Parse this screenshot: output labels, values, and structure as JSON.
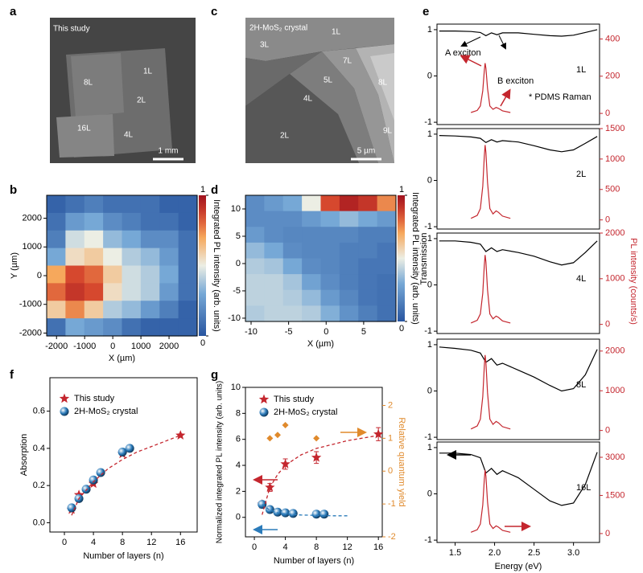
{
  "images": [
    {
      "panel": "a",
      "labels": [
        "This study",
        "8L",
        "1L",
        "2L",
        "16L",
        "4L"
      ],
      "scale_bar": "1 mm"
    },
    {
      "panel": "c",
      "title": "2H-MoS₂ crystal",
      "labels": [
        "3L",
        "1L",
        "7L",
        "5L",
        "8L",
        "4L",
        "2L",
        "9L"
      ],
      "scale_bar": "5 µm"
    }
  ],
  "chart_data": [
    {
      "panel": "b",
      "type": "heatmap",
      "xlabel": "X (µm)",
      "ylabel": "Y (µm)",
      "colorbar_label": "Integrated PL intensity (arb. units)",
      "clim": [
        0,
        1
      ],
      "colorbar_ticks": [
        0,
        1
      ],
      "xlim": [
        -2350,
        3000
      ],
      "xticks": [
        -2000,
        -1000,
        0,
        1000,
        2000
      ],
      "ylim": [
        -2100,
        2800
      ],
      "yticks": [
        -2000,
        -1000,
        0,
        1000,
        2000
      ],
      "z": [
        [
          0.05,
          0.1,
          0.15,
          0.1,
          0.1,
          0.1,
          0.05,
          0.05
        ],
        [
          0.1,
          0.25,
          0.3,
          0.2,
          0.15,
          0.1,
          0.1,
          0.05
        ],
        [
          0.15,
          0.45,
          0.5,
          0.35,
          0.3,
          0.2,
          0.2,
          0.1
        ],
        [
          0.3,
          0.55,
          0.6,
          0.5,
          0.4,
          0.35,
          0.25,
          0.1
        ],
        [
          0.7,
          0.85,
          0.8,
          0.6,
          0.45,
          0.4,
          0.3,
          0.1
        ],
        [
          0.8,
          0.9,
          0.85,
          0.55,
          0.45,
          0.4,
          0.25,
          0.1
        ],
        [
          0.6,
          0.75,
          0.6,
          0.4,
          0.35,
          0.25,
          0.15,
          0.05
        ],
        [
          0.1,
          0.3,
          0.25,
          0.2,
          0.1,
          0.05,
          0.05,
          0.05
        ]
      ]
    },
    {
      "panel": "d",
      "type": "heatmap",
      "xlabel": "X (µm)",
      "colorbar_label": "Integrated PL intensity (arb. units)",
      "clim": [
        0,
        1
      ],
      "colorbar_ticks": [
        0,
        1
      ],
      "xlim": [
        -10.75,
        9.3
      ],
      "xticks": [
        -10,
        -5,
        0,
        5
      ],
      "ylim": [
        -10.6,
        12.5
      ],
      "yticks": [
        -10,
        -5,
        0,
        5,
        10
      ],
      "z": [
        [
          0.2,
          0.25,
          0.3,
          0.5,
          0.85,
          0.95,
          0.9,
          0.75
        ],
        [
          0.2,
          0.2,
          0.2,
          0.25,
          0.3,
          0.35,
          0.3,
          0.25
        ],
        [
          0.25,
          0.2,
          0.18,
          0.18,
          0.18,
          0.18,
          0.15,
          0.15
        ],
        [
          0.35,
          0.3,
          0.2,
          0.18,
          0.18,
          0.15,
          0.15,
          0.12
        ],
        [
          0.4,
          0.38,
          0.3,
          0.2,
          0.18,
          0.15,
          0.12,
          0.12
        ],
        [
          0.42,
          0.42,
          0.38,
          0.28,
          0.2,
          0.15,
          0.12,
          0.1
        ],
        [
          0.42,
          0.42,
          0.4,
          0.35,
          0.25,
          0.18,
          0.12,
          0.1
        ],
        [
          0.4,
          0.42,
          0.42,
          0.4,
          0.32,
          0.22,
          0.15,
          0.1
        ]
      ]
    },
    {
      "panel": "f",
      "type": "scatter",
      "xlabel": "Number of layers (n)",
      "ylabel": "Absorption",
      "xlim": [
        -2,
        18.3
      ],
      "xticks": [
        0,
        4,
        8,
        12,
        16
      ],
      "ylim": [
        -0.05,
        0.78
      ],
      "yticks": [
        {
          "value": 0,
          "label": "0.0"
        },
        0.2,
        0.4,
        0.6
      ],
      "series": [
        {
          "name": "This study",
          "marker": "star",
          "color": "#c4262e",
          "x": [
            1,
            2,
            4,
            8,
            16
          ],
          "values": [
            0.07,
            0.15,
            0.21,
            0.37,
            0.47
          ]
        },
        {
          "name": "2H-MoS₂ crystal",
          "marker": "sphere",
          "color": "#2b7bba",
          "x": [
            1,
            2,
            3,
            4,
            5,
            8,
            9
          ],
          "values": [
            0.08,
            0.13,
            0.18,
            0.23,
            0.27,
            0.38,
            0.4
          ]
        },
        {
          "color": "#c4262e",
          "dashed": true,
          "x": [
            1,
            2,
            4,
            6,
            8,
            10,
            12,
            14,
            16
          ],
          "values": [
            0.04,
            0.13,
            0.22,
            0.29,
            0.34,
            0.38,
            0.41,
            0.44,
            0.47
          ]
        }
      ]
    },
    {
      "panel": "g",
      "type": "scatter",
      "xlabel": "Number of layers (n)",
      "ylabel": "Normalized integrated PL intensity (arb. units)",
      "y2label": "Relative quantum yield",
      "xlim": [
        -1.15,
        16.5
      ],
      "xticks": [
        0,
        4,
        8,
        12,
        16
      ],
      "ylim": [
        -1.5,
        10
      ],
      "yticks": [
        0,
        2,
        4,
        6,
        8,
        10
      ],
      "y2lim": [
        -2,
        2.55
      ],
      "y2ticks": [
        -2,
        -1,
        0,
        1,
        2
      ],
      "y2color": "#e08a2c",
      "series": [
        {
          "name": "This study",
          "marker": "star",
          "color": "#c4262e",
          "x": [
            1,
            2,
            4,
            8,
            16
          ],
          "values": [
            1,
            2.3,
            4.1,
            4.6,
            6.4
          ],
          "errors": [
            0.2,
            0.3,
            0.4,
            0.45,
            0.5
          ]
        },
        {
          "name": "2H-MoS₂ crystal",
          "marker": "sphere",
          "color": "#2b7bba",
          "x": [
            1,
            2,
            3,
            4,
            5,
            8,
            9
          ],
          "values": [
            1,
            0.6,
            0.4,
            0.35,
            0.3,
            0.25,
            0.25
          ]
        },
        {
          "marker": "diamond",
          "color": "#e08a2c",
          "axis": "y2",
          "x": [
            2,
            3,
            4,
            8
          ],
          "values": [
            1.0,
            1.1,
            1.4,
            1.0
          ]
        },
        {
          "color": "#c4262e",
          "dashed": true,
          "x": [
            1,
            2,
            3,
            4,
            6,
            8,
            10,
            12,
            14,
            16
          ],
          "values": [
            0.2,
            2.3,
            3.3,
            4.0,
            4.8,
            5.3,
            5.6,
            5.9,
            6.1,
            6.3
          ]
        },
        {
          "color": "#2b7bba",
          "dashed": true,
          "x": [
            1,
            2,
            3,
            4,
            6,
            8,
            10,
            12
          ],
          "values": [
            1.0,
            0.55,
            0.35,
            0.25,
            0.18,
            0.15,
            0.12,
            0.12
          ]
        }
      ]
    },
    {
      "panel": "e",
      "type": "line",
      "label": "1L",
      "annotations": [
        "A exciton",
        "B exciton",
        "* PDMS Raman"
      ],
      "xlim": [
        1.27,
        3.33
      ],
      "ylim": [
        -1.05,
        1.12
      ],
      "yticks": [
        -1,
        0,
        1
      ],
      "y2lim": [
        -60,
        480
      ],
      "y2ticks": [
        0,
        200,
        400
      ],
      "series": [
        {
          "color": "#000000",
          "x": [
            1.3,
            1.5,
            1.7,
            1.82,
            1.89,
            1.96,
            2.03,
            2.1,
            2.3,
            2.5,
            2.7,
            2.85,
            3.0,
            3.15,
            3.3
          ],
          "values": [
            0.97,
            0.97,
            0.96,
            0.94,
            0.87,
            0.93,
            0.89,
            0.93,
            0.93,
            0.9,
            0.87,
            0.86,
            0.88,
            0.94,
            1.0
          ]
        },
        {
          "color": "#c4262e",
          "axis": "y2",
          "x": [
            1.7,
            1.78,
            1.82,
            1.85,
            1.87,
            1.88,
            1.89,
            1.91,
            1.94,
            1.98,
            2.02,
            2.05,
            2.1,
            2.2
          ],
          "values": [
            5,
            16,
            40,
            122,
            230,
            270,
            243,
            135,
            40,
            22,
            32,
            27,
            14,
            5
          ]
        }
      ]
    },
    {
      "type": "line",
      "label": "2L",
      "xlim": [
        1.27,
        3.33
      ],
      "ylim": [
        -1.05,
        1.12
      ],
      "yticks": [
        -1,
        0,
        1
      ],
      "y2lim": [
        -150,
        1500
      ],
      "y2ticks": [
        0,
        500,
        1000,
        1500
      ],
      "series": [
        {
          "color": "#000000",
          "x": [
            1.3,
            1.5,
            1.7,
            1.82,
            1.89,
            1.96,
            2.03,
            2.1,
            2.3,
            2.5,
            2.7,
            2.85,
            3.0,
            3.15,
            3.3
          ],
          "values": [
            0.97,
            0.96,
            0.94,
            0.91,
            0.82,
            0.88,
            0.83,
            0.86,
            0.83,
            0.75,
            0.66,
            0.62,
            0.66,
            0.8,
            0.95
          ]
        },
        {
          "color": "#c4262e",
          "axis": "y2",
          "x": [
            1.7,
            1.78,
            1.82,
            1.85,
            1.87,
            1.88,
            1.89,
            1.91,
            1.94,
            1.98,
            2.02,
            2.05,
            2.1,
            2.2
          ],
          "values": [
            25,
            74,
            185,
            554,
            1046,
            1230,
            1107,
            615,
            185,
            98,
            148,
            123,
            62,
            25
          ]
        }
      ]
    },
    {
      "type": "line",
      "label": "4L",
      "ylabel": "Transmission",
      "y2label": "PL intensity (counts/s)",
      "xlim": [
        1.27,
        3.33
      ],
      "ylim": [
        -1.05,
        1.12
      ],
      "yticks": [
        -1,
        0,
        1
      ],
      "y2lim": [
        -200,
        2000
      ],
      "y2ticks": [
        0,
        1000,
        2000
      ],
      "series": [
        {
          "color": "#000000",
          "x": [
            1.3,
            1.5,
            1.7,
            1.82,
            1.89,
            1.96,
            2.03,
            2.1,
            2.3,
            2.5,
            2.7,
            2.85,
            3.0,
            3.15,
            3.3
          ],
          "values": [
            0.95,
            0.95,
            0.92,
            0.88,
            0.72,
            0.8,
            0.72,
            0.76,
            0.7,
            0.62,
            0.5,
            0.43,
            0.48,
            0.7,
            0.95
          ]
        },
        {
          "color": "#c4262e",
          "axis": "y2",
          "x": [
            1.7,
            1.78,
            1.82,
            1.85,
            1.87,
            1.88,
            1.89,
            1.91,
            1.94,
            1.98,
            2.02,
            2.05,
            2.1,
            2.2
          ],
          "values": [
            30,
            91,
            228,
            684,
            1292,
            1520,
            1368,
            760,
            228,
            122,
            182,
            152,
            76,
            30
          ]
        }
      ]
    },
    {
      "type": "line",
      "label": "8L",
      "xlim": [
        1.27,
        3.33
      ],
      "ylim": [
        -1.05,
        1.12
      ],
      "yticks": [
        -1,
        0,
        1
      ],
      "y2lim": [
        -230,
        2300
      ],
      "y2ticks": [
        0,
        1000,
        2000
      ],
      "series": [
        {
          "color": "#000000",
          "x": [
            1.3,
            1.5,
            1.7,
            1.82,
            1.89,
            1.96,
            2.03,
            2.1,
            2.3,
            2.5,
            2.7,
            2.85,
            3.0,
            3.15,
            3.3
          ],
          "values": [
            0.95,
            0.92,
            0.88,
            0.82,
            0.62,
            0.7,
            0.56,
            0.6,
            0.45,
            0.3,
            0.12,
            0.0,
            0.05,
            0.35,
            0.9
          ]
        },
        {
          "color": "#c4262e",
          "axis": "y2",
          "x": [
            1.7,
            1.78,
            1.82,
            1.85,
            1.87,
            1.88,
            1.89,
            1.91,
            1.94,
            1.98,
            2.02,
            2.05,
            2.1,
            2.2
          ],
          "values": [
            38,
            114,
            285,
            855,
            1615,
            1900,
            1710,
            950,
            285,
            152,
            228,
            190,
            95,
            38
          ]
        }
      ]
    },
    {
      "type": "line",
      "label": "16L",
      "xlabel": "Energy (eV)",
      "xlim": [
        1.27,
        3.33
      ],
      "xticks": [
        1.5,
        {
          "value": 2,
          "label": "2.0"
        },
        2.5,
        {
          "value": 3,
          "label": "3.0"
        }
      ],
      "ylim": [
        -1.05,
        1.12
      ],
      "yticks": [
        -1,
        0,
        1
      ],
      "y2lim": [
        -350,
        3600
      ],
      "y2ticks": [
        0,
        1500,
        3000
      ],
      "series": [
        {
          "color": "#000000",
          "x": [
            1.3,
            1.5,
            1.7,
            1.82,
            1.89,
            1.96,
            2.03,
            2.1,
            2.3,
            2.5,
            2.7,
            2.85,
            3.0,
            3.15,
            3.3
          ],
          "values": [
            0.88,
            0.88,
            0.85,
            0.78,
            0.45,
            0.55,
            0.42,
            0.5,
            0.35,
            0.1,
            -0.15,
            -0.25,
            -0.2,
            0.2,
            0.9
          ]
        },
        {
          "color": "#c4262e",
          "axis": "y2",
          "x": [
            1.7,
            1.78,
            1.82,
            1.85,
            1.87,
            1.88,
            1.89,
            1.91,
            1.94,
            1.98,
            2.02,
            2.05,
            2.1,
            2.2
          ],
          "values": [
            50,
            150,
            375,
            1125,
            2125,
            2500,
            2250,
            1250,
            375,
            200,
            300,
            250,
            125,
            50
          ]
        }
      ]
    }
  ]
}
